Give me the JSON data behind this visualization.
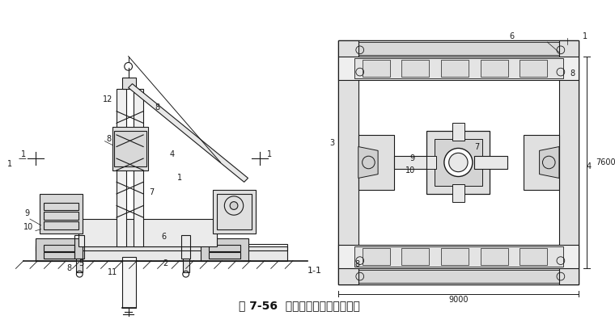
{
  "title": "图 7-56  全液压式静力压桩机压桩",
  "background_color": "#ffffff",
  "line_color": "#1a1a1a",
  "fig_width": 7.6,
  "fig_height": 4.01,
  "section_label": "1-1",
  "dim_9000": "9000",
  "dim_7600": "7600"
}
